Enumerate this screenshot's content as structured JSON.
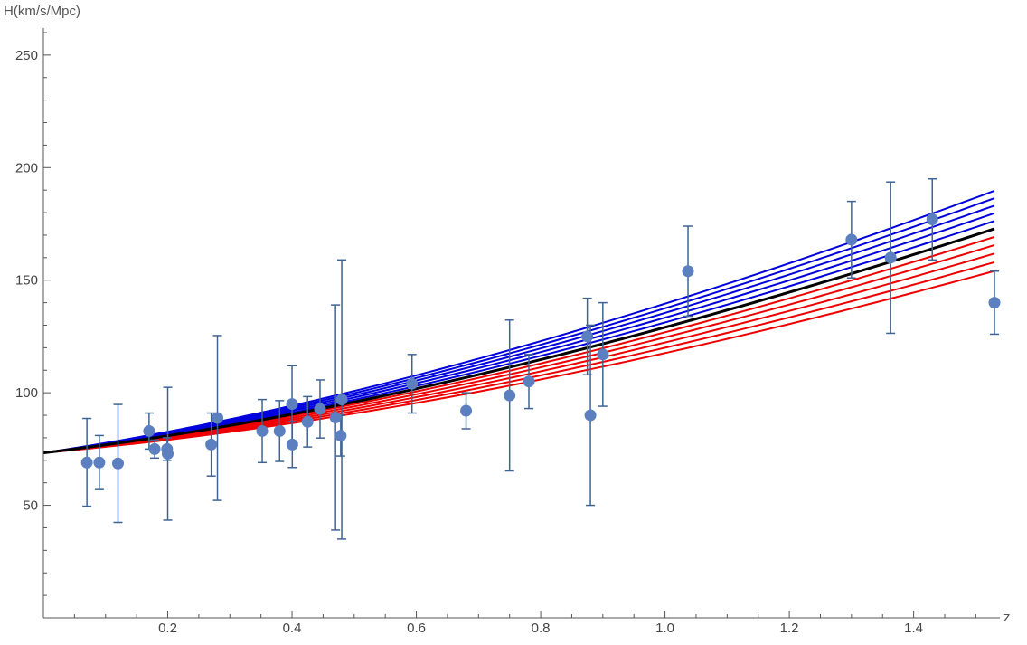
{
  "chart_data": {
    "type": "scatter",
    "xlabel": "z",
    "ylabel": "H(km/s/Mpc)",
    "xlim": [
      0,
      1.53
    ],
    "ylim": [
      0,
      262
    ],
    "x_ticks": [
      0.2,
      0.4,
      0.6,
      0.8,
      1.0,
      1.2,
      1.4
    ],
    "x_tick_labels": [
      "0.2",
      "0.4",
      "0.6",
      "0.8",
      "1.0",
      "1.2",
      "1.4"
    ],
    "y_ticks": [
      50,
      100,
      150,
      200,
      250
    ],
    "y_tick_labels": [
      "50",
      "100",
      "150",
      "200",
      "250"
    ],
    "grid": false,
    "points": [
      {
        "x": 0.07,
        "y": 69,
        "lo": 49.6,
        "hi": 88.6
      },
      {
        "x": 0.09,
        "y": 69,
        "lo": 57,
        "hi": 81
      },
      {
        "x": 0.12,
        "y": 68.6,
        "lo": 42.4,
        "hi": 94.8
      },
      {
        "x": 0.17,
        "y": 83,
        "lo": 75,
        "hi": 91
      },
      {
        "x": 0.179,
        "y": 75,
        "lo": 71,
        "hi": 79
      },
      {
        "x": 0.199,
        "y": 75,
        "lo": 70,
        "hi": 80
      },
      {
        "x": 0.2,
        "y": 72.9,
        "lo": 43.4,
        "hi": 102.4
      },
      {
        "x": 0.27,
        "y": 77,
        "lo": 63,
        "hi": 91
      },
      {
        "x": 0.28,
        "y": 88.8,
        "lo": 52.2,
        "hi": 125.4
      },
      {
        "x": 0.352,
        "y": 83,
        "lo": 69,
        "hi": 97
      },
      {
        "x": 0.38,
        "y": 83,
        "lo": 69.5,
        "hi": 96.5
      },
      {
        "x": 0.4,
        "y": 95,
        "lo": 78,
        "hi": 112
      },
      {
        "x": 0.4004,
        "y": 77,
        "lo": 66.8,
        "hi": 87.2
      },
      {
        "x": 0.425,
        "y": 87.1,
        "lo": 75.9,
        "hi": 98.3
      },
      {
        "x": 0.445,
        "y": 92.8,
        "lo": 79.9,
        "hi": 105.7
      },
      {
        "x": 0.47,
        "y": 89,
        "lo": 39,
        "hi": 139
      },
      {
        "x": 0.4783,
        "y": 80.9,
        "lo": 71.9,
        "hi": 89.9
      },
      {
        "x": 0.48,
        "y": 97,
        "lo": 35,
        "hi": 159
      },
      {
        "x": 0.593,
        "y": 104,
        "lo": 91,
        "hi": 117
      },
      {
        "x": 0.68,
        "y": 92,
        "lo": 84,
        "hi": 100
      },
      {
        "x": 0.75,
        "y": 98.8,
        "lo": 65.3,
        "hi": 132.3
      },
      {
        "x": 0.781,
        "y": 105,
        "lo": 93,
        "hi": 117
      },
      {
        "x": 0.875,
        "y": 125,
        "lo": 108,
        "hi": 142
      },
      {
        "x": 0.88,
        "y": 90,
        "lo": 50,
        "hi": 130
      },
      {
        "x": 0.9,
        "y": 117,
        "lo": 94,
        "hi": 140
      },
      {
        "x": 1.037,
        "y": 154,
        "lo": 134,
        "hi": 174
      },
      {
        "x": 1.3,
        "y": 168,
        "lo": 151,
        "hi": 185
      },
      {
        "x": 1.363,
        "y": 160,
        "lo": 126.4,
        "hi": 193.6
      },
      {
        "x": 1.43,
        "y": 177,
        "lo": 159,
        "hi": 195
      },
      {
        "x": 1.53,
        "y": 140,
        "lo": 126,
        "hi": 154
      }
    ],
    "model_curves": {
      "x_range": [
        0,
        1.53
      ],
      "H0": 73.3,
      "black": {
        "color": "#000000",
        "Om": 0.3
      },
      "blue": {
        "color": "#0000dd",
        "Om": [
          0.315,
          0.33,
          0.345,
          0.36,
          0.375
        ]
      },
      "red": {
        "color": "#ee0000",
        "Om": [
          0.285,
          0.27,
          0.255,
          0.24,
          0.225
        ]
      }
    },
    "point_color": "#5b7fbf",
    "errorbar_color": "#3f6494"
  }
}
